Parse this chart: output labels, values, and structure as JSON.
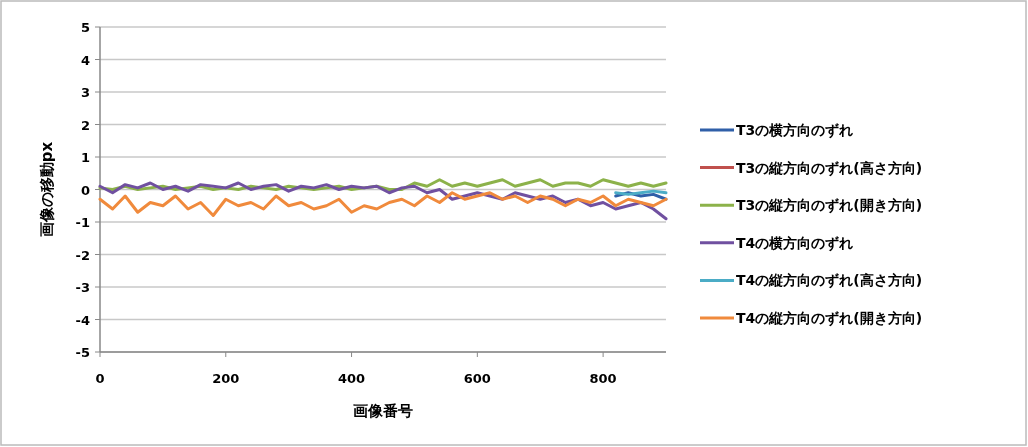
{
  "chart_data": {
    "type": "line",
    "xlabel": "画像番号",
    "ylabel": "画像の移動px",
    "xlim": [
      0,
      900
    ],
    "xticks": [
      0,
      200,
      400,
      600,
      800
    ],
    "ylim": [
      -5,
      5
    ],
    "yticks": [
      -5,
      -4,
      -3,
      -2,
      -1,
      0,
      1,
      2,
      3,
      4,
      5
    ],
    "grid": "y",
    "legend": "right",
    "marker": "none",
    "line_style": "solid",
    "x": [
      0,
      20,
      40,
      60,
      80,
      100,
      120,
      140,
      160,
      180,
      200,
      220,
      240,
      260,
      280,
      300,
      320,
      340,
      360,
      380,
      400,
      420,
      440,
      460,
      480,
      500,
      520,
      540,
      560,
      580,
      600,
      620,
      640,
      660,
      680,
      700,
      720,
      740,
      760,
      780,
      800,
      820,
      840,
      860,
      880,
      900
    ],
    "series": [
      {
        "name": "T3の横方向のずれ",
        "color": "#2f5fa8",
        "values": [
          null,
          null,
          null,
          null,
          null,
          null,
          null,
          null,
          null,
          null,
          null,
          null,
          null,
          null,
          null,
          null,
          null,
          null,
          null,
          null,
          null,
          null,
          null,
          null,
          null,
          null,
          null,
          null,
          null,
          null,
          null,
          null,
          null,
          null,
          null,
          null,
          null,
          null,
          null,
          null,
          null,
          -0.2,
          -0.1,
          -0.2,
          -0.15,
          -0.3
        ]
      },
      {
        "name": "T3の縦方向のずれ(高さ方向)",
        "color": "#c0504d",
        "values": [
          null,
          null,
          null,
          null,
          null,
          null,
          null,
          null,
          null,
          null,
          null,
          null,
          null,
          null,
          null,
          null,
          null,
          null,
          null,
          null,
          null,
          null,
          null,
          null,
          null,
          null,
          null,
          null,
          null,
          null,
          null,
          null,
          null,
          null,
          null,
          null,
          null,
          null,
          null,
          null,
          null,
          null,
          null,
          null,
          null,
          null
        ]
      },
      {
        "name": "T3の縦方向のずれ(開き方向)",
        "color": "#8cb24a",
        "values": [
          0.05,
          0,
          0.1,
          0,
          0.05,
          0.1,
          0,
          0.05,
          0.1,
          0,
          0.05,
          0,
          0.1,
          0.05,
          0,
          0.1,
          0.05,
          0,
          0.05,
          0.1,
          0,
          0.05,
          0.1,
          0,
          0,
          0.2,
          0.1,
          0.3,
          0.1,
          0.2,
          0.1,
          0.2,
          0.3,
          0.1,
          0.2,
          0.3,
          0.1,
          0.2,
          0.2,
          0.1,
          0.3,
          0.2,
          0.1,
          0.2,
          0.1,
          0.2
        ]
      },
      {
        "name": "T4の横方向のずれ",
        "color": "#7050a0",
        "values": [
          0.1,
          -0.1,
          0.15,
          0.05,
          0.2,
          0,
          0.1,
          -0.05,
          0.15,
          0.1,
          0.05,
          0.2,
          0,
          0.1,
          0.15,
          -0.05,
          0.1,
          0.05,
          0.15,
          0,
          0.1,
          0.05,
          0.1,
          -0.1,
          0.05,
          0.1,
          -0.1,
          0,
          -0.3,
          -0.2,
          -0.1,
          -0.2,
          -0.3,
          -0.1,
          -0.2,
          -0.3,
          -0.2,
          -0.4,
          -0.3,
          -0.5,
          -0.4,
          -0.6,
          -0.5,
          -0.4,
          -0.6,
          -0.9
        ]
      },
      {
        "name": "T4の縦方向のずれ(高さ方向)",
        "color": "#4bacc6",
        "values": [
          null,
          null,
          null,
          null,
          null,
          null,
          null,
          null,
          null,
          null,
          null,
          null,
          null,
          null,
          null,
          null,
          null,
          null,
          null,
          null,
          null,
          null,
          null,
          null,
          null,
          null,
          null,
          null,
          null,
          null,
          null,
          null,
          null,
          null,
          null,
          null,
          null,
          null,
          null,
          null,
          null,
          -0.1,
          -0.15,
          -0.1,
          -0.05,
          -0.1
        ]
      },
      {
        "name": "T4の縦方向のずれ(開き方向)",
        "color": "#f08a3c",
        "values": [
          -0.3,
          -0.6,
          -0.2,
          -0.7,
          -0.4,
          -0.5,
          -0.2,
          -0.6,
          -0.4,
          -0.8,
          -0.3,
          -0.5,
          -0.4,
          -0.6,
          -0.2,
          -0.5,
          -0.4,
          -0.6,
          -0.5,
          -0.3,
          -0.7,
          -0.5,
          -0.6,
          -0.4,
          -0.3,
          -0.5,
          -0.2,
          -0.4,
          -0.1,
          -0.3,
          -0.2,
          -0.1,
          -0.3,
          -0.2,
          -0.4,
          -0.2,
          -0.3,
          -0.5,
          -0.3,
          -0.4,
          -0.2,
          -0.5,
          -0.3,
          -0.4,
          -0.5,
          -0.3
        ]
      }
    ]
  }
}
